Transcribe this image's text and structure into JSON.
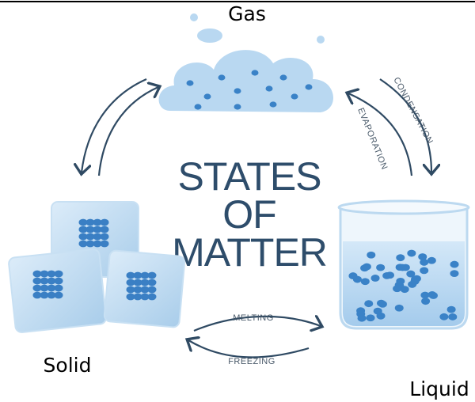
{
  "title": {
    "lines": [
      "STATES",
      "OF",
      "MATTER"
    ]
  },
  "nodes": [
    {
      "label": "Gas"
    },
    {
      "label": "Solid"
    },
    {
      "label": "Liquid"
    }
  ],
  "transitions": [
    {
      "label": "CONDENSATION"
    },
    {
      "label": "EVAPORATION"
    },
    {
      "label": "MELTING"
    },
    {
      "label": "FREEZING"
    }
  ]
}
